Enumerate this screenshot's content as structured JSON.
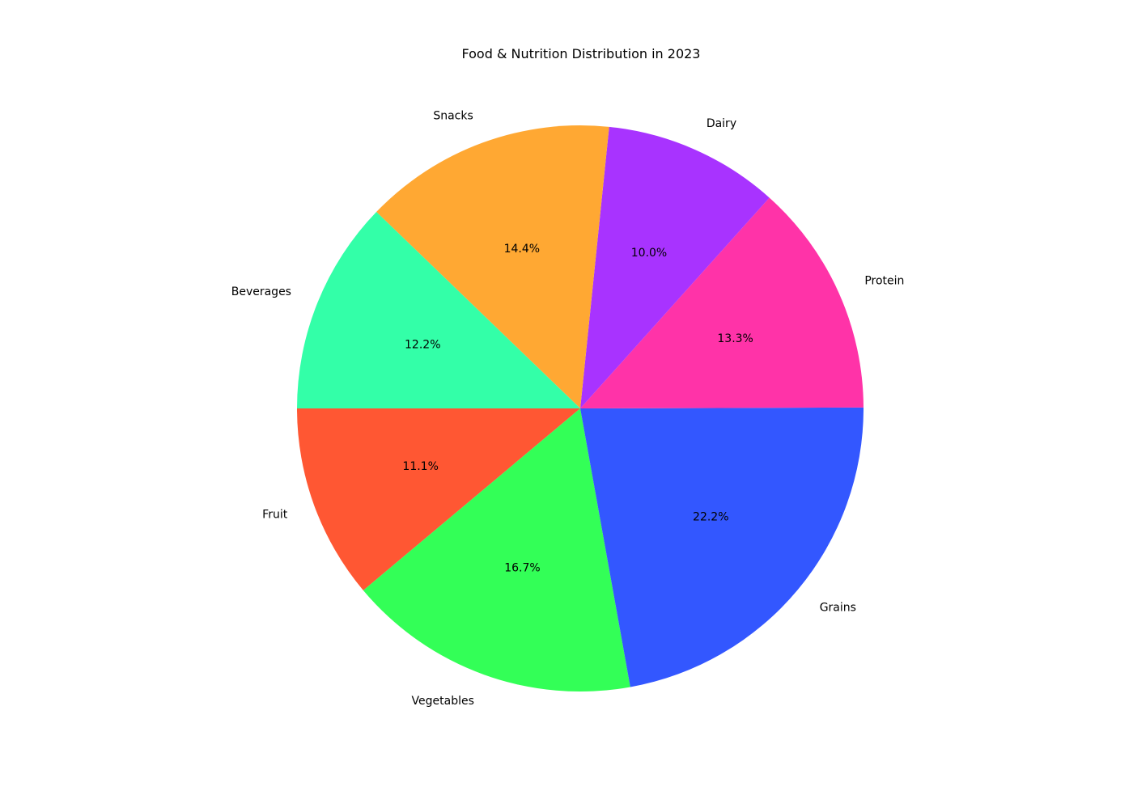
{
  "chart_data": {
    "type": "pie",
    "title": "Food & Nutrition Distribution in 2023",
    "categories": [
      "Fruit",
      "Vegetables",
      "Grains",
      "Protein",
      "Dairy",
      "Snacks",
      "Beverages"
    ],
    "values": [
      11.1,
      16.7,
      22.2,
      13.3,
      10.0,
      14.4,
      12.2
    ],
    "value_labels": [
      "11.1%",
      "16.7%",
      "22.2%",
      "13.3%",
      "10.0%",
      "14.4%",
      "12.2%"
    ],
    "colors": [
      "#ff5733",
      "#33ff57",
      "#3357ff",
      "#ff33a8",
      "#a833ff",
      "#ffa833",
      "#33ffa8"
    ],
    "start_angle_deg": 180,
    "direction": "counterclockwise",
    "legend": "none"
  }
}
